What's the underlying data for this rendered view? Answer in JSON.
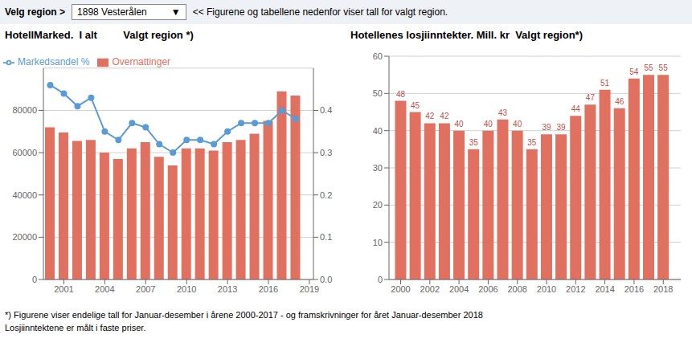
{
  "chart_data": [
    {
      "type": "bar",
      "title": "HotellMarked.  I alt         Valgt region *)",
      "x": [
        2000,
        2001,
        2002,
        2003,
        2004,
        2005,
        2006,
        2007,
        2008,
        2009,
        2010,
        2011,
        2012,
        2013,
        2014,
        2015,
        2016,
        2017,
        2018
      ],
      "series": [
        {
          "name": "Overnattinger",
          "type": "bar",
          "color": "#e07060",
          "values": [
            72000,
            69500,
            65500,
            66000,
            60000,
            57000,
            62000,
            65000,
            58000,
            54000,
            62000,
            62000,
            61000,
            65000,
            66000,
            69000,
            75000,
            89000,
            87000
          ]
        },
        {
          "name": "Markedsandel %",
          "type": "line",
          "axis": "y2",
          "color": "#5b9bd5",
          "marker": "circle",
          "values": [
            0.46,
            0.44,
            0.41,
            0.43,
            0.35,
            0.33,
            0.37,
            0.36,
            0.32,
            0.3,
            0.33,
            0.33,
            0.32,
            0.35,
            0.37,
            0.37,
            0.37,
            0.4,
            0.38
          ]
        }
      ],
      "xlim": [
        1999.5,
        2019.3
      ],
      "xticks": [
        2001,
        2004,
        2007,
        2010,
        2013,
        2016,
        2019
      ],
      "ylim": [
        0,
        100000
      ],
      "yticks": [
        0,
        20000,
        40000,
        60000,
        80000
      ],
      "y2lim": [
        0,
        0.5
      ],
      "y2ticks": [
        {
          "value": 0,
          "label": "0.0"
        },
        0.1,
        0.2,
        0.3,
        0.4
      ],
      "grid": true,
      "legend": "top left",
      "annotations": [
        "Velg region >",
        "1898 Vesterålen",
        "▼",
        "<< Figurene og tabellene nedenfor viser tall for valgt region."
      ]
    },
    {
      "type": "bar",
      "title": "Hotellenes losjiinntekter. Mill. kr  Valgt region*)",
      "x": [
        2000,
        2001,
        2002,
        2003,
        2004,
        2005,
        2006,
        2007,
        2008,
        2009,
        2010,
        2011,
        2012,
        2013,
        2014,
        2015,
        2016,
        2017,
        2018
      ],
      "series": [
        {
          "name": "Losjiinntekter",
          "type": "bar",
          "color": "#e07060",
          "values": [
            48,
            45,
            42,
            42,
            40,
            35,
            40,
            43,
            40,
            35,
            39,
            39,
            44,
            47,
            51,
            46,
            54,
            55,
            55
          ]
        }
      ],
      "xlim": [
        1999.2,
        2019.2
      ],
      "xticks": [
        2000,
        2002,
        2004,
        2006,
        2008,
        2010,
        2012,
        2014,
        2016,
        2018
      ],
      "ylim": [
        0,
        60
      ],
      "yticks": [
        0,
        10,
        20,
        30,
        40,
        50,
        60
      ],
      "grid": true,
      "data_labels": true,
      "annotations": [
        "*) Figurene viser endelige tall for Januar-desember i årene 2000-2017 - og framskrivninger for året Januar-desember 2018",
        "Losjiinntektene er målt i faste priser."
      ]
    }
  ]
}
